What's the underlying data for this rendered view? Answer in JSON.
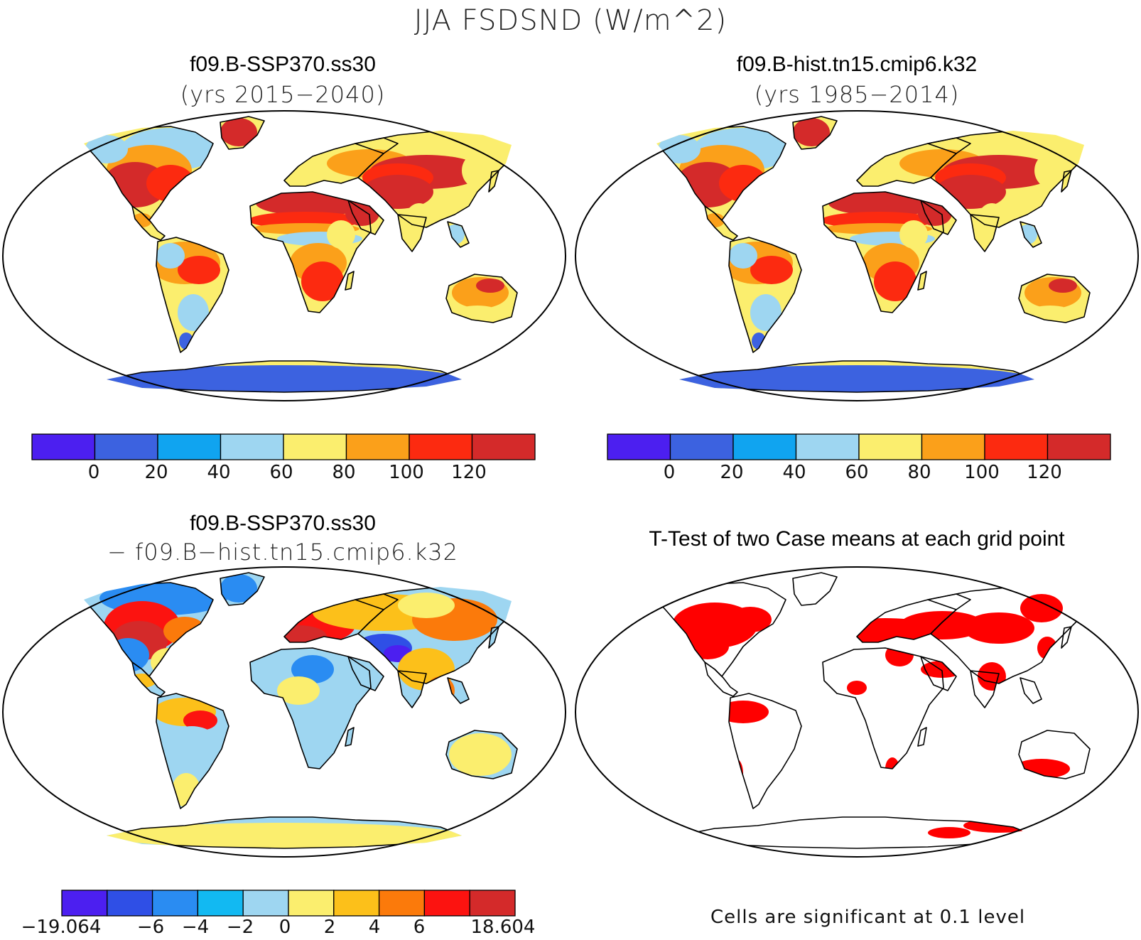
{
  "figure": {
    "title": "JJA FSDSND (W/m^2)",
    "colors": {
      "cb1": [
        "#4c1ff0",
        "#3c62e0",
        "#10a4f0",
        "#9ed6f1",
        "#fbee6e",
        "#fba01a",
        "#fc2a10",
        "#d42a2a"
      ],
      "cb2": [
        "#4c1ff0",
        "#2f4fe6",
        "#2a8cf2",
        "#12b9f2",
        "#9ed6f1",
        "#fbee6e",
        "#fcc01a",
        "#fb7a0b",
        "#fc1310",
        "#d42a2a"
      ],
      "ocean": "#ffffff",
      "significant": "#ff0000"
    }
  },
  "panels": {
    "top_left": {
      "title": "f09.B-SSP370.ss30",
      "subtitle": "(yrs 2015−2040)"
    },
    "top_right": {
      "title": "f09.B-hist.tn15.cmip6.k32",
      "subtitle": "(yrs 1985−2014)"
    },
    "bottom_left": {
      "title": "f09.B-SSP370.ss30",
      "subtitle": "− f09.B−hist.tn15.cmip6.k32"
    },
    "bottom_right": {
      "title": "T-Test of two Case means at each grid point",
      "note": "Cells are significant at 0.1 level"
    }
  },
  "colorbars": {
    "cases_ticks": [
      "0",
      "20",
      "40",
      "60",
      "80",
      "100",
      "120"
    ],
    "diff_ticks": [
      "−19.064",
      "−6",
      "−4",
      "−2",
      "0",
      "2",
      "4",
      "6",
      "18.604"
    ]
  }
}
